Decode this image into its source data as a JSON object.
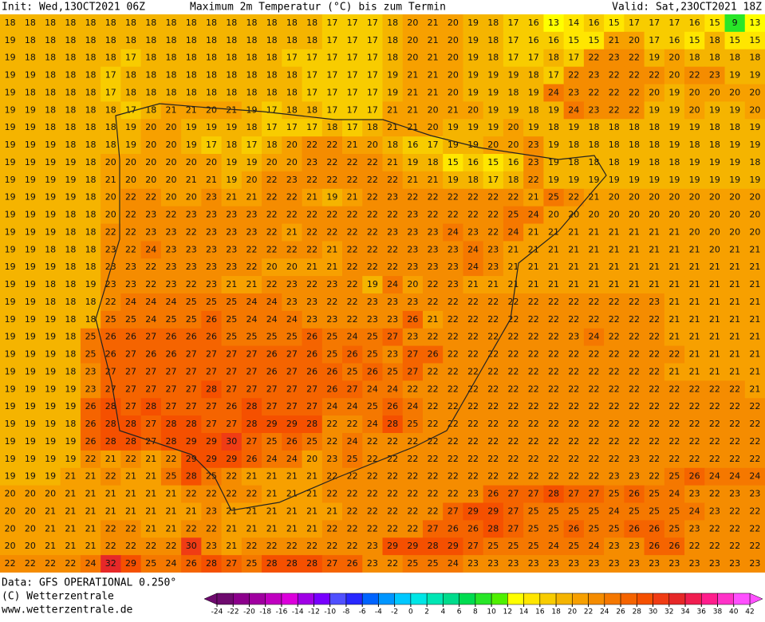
{
  "header": {
    "init": "Init: Wed,13OCT2021 06Z",
    "title": "Maximum 2m Temperatur (°C) bis zum Termin",
    "valid": "Valid: Sat,23OCT2021 18Z"
  },
  "map": {
    "type": "grid",
    "rows": [
      [
        18,
        18,
        18,
        18,
        18,
        18,
        18,
        18,
        18,
        18,
        18,
        18,
        18,
        18,
        18,
        18,
        17,
        17,
        17,
        18,
        20,
        21,
        20,
        19,
        18,
        17,
        16,
        13,
        14,
        16,
        15,
        17,
        17,
        17,
        16,
        15,
        9,
        13
      ],
      [
        19,
        18,
        18,
        18,
        18,
        18,
        18,
        18,
        18,
        18,
        18,
        18,
        18,
        18,
        18,
        18,
        17,
        17,
        17,
        18,
        20,
        21,
        20,
        19,
        18,
        17,
        16,
        16,
        15,
        15,
        21,
        20,
        17,
        16,
        15,
        18,
        15,
        15
      ],
      [
        19,
        18,
        18,
        18,
        18,
        18,
        17,
        18,
        18,
        18,
        18,
        18,
        18,
        18,
        17,
        17,
        17,
        17,
        17,
        18,
        20,
        21,
        20,
        19,
        18,
        17,
        17,
        18,
        17,
        22,
        23,
        22,
        19,
        20,
        18,
        18,
        18,
        18
      ],
      [
        19,
        19,
        18,
        18,
        18,
        17,
        18,
        18,
        18,
        18,
        18,
        18,
        18,
        18,
        18,
        17,
        17,
        17,
        17,
        19,
        21,
        21,
        20,
        19,
        19,
        19,
        18,
        17,
        22,
        23,
        22,
        22,
        22,
        20,
        22,
        23,
        19,
        19
      ],
      [
        19,
        18,
        18,
        18,
        18,
        17,
        18,
        18,
        18,
        18,
        18,
        18,
        18,
        18,
        18,
        17,
        17,
        17,
        17,
        19,
        21,
        21,
        20,
        19,
        19,
        18,
        19,
        24,
        23,
        22,
        22,
        22,
        20,
        19,
        20,
        20,
        20,
        20
      ],
      [
        19,
        19,
        18,
        18,
        18,
        18,
        17,
        18,
        21,
        21,
        20,
        21,
        19,
        17,
        18,
        18,
        17,
        17,
        17,
        21,
        21,
        20,
        21,
        20,
        19,
        19,
        18,
        19,
        24,
        23,
        22,
        22,
        19,
        19,
        20,
        19,
        19,
        20
      ],
      [
        19,
        19,
        18,
        18,
        18,
        18,
        19,
        20,
        20,
        19,
        19,
        19,
        18,
        17,
        17,
        17,
        18,
        17,
        18,
        21,
        21,
        20,
        19,
        19,
        19,
        20,
        19,
        18,
        19,
        18,
        18,
        18,
        18,
        19,
        19,
        18,
        18,
        19
      ],
      [
        19,
        19,
        19,
        18,
        18,
        18,
        19,
        20,
        20,
        19,
        17,
        18,
        17,
        18,
        20,
        22,
        22,
        21,
        20,
        18,
        16,
        17,
        19,
        19,
        20,
        20,
        23,
        19,
        18,
        18,
        18,
        18,
        18,
        19,
        18,
        18,
        19,
        19
      ],
      [
        19,
        19,
        19,
        19,
        18,
        20,
        20,
        20,
        20,
        20,
        20,
        19,
        19,
        20,
        20,
        23,
        22,
        22,
        22,
        21,
        19,
        18,
        15,
        16,
        15,
        16,
        23,
        19,
        18,
        18,
        18,
        19,
        18,
        18,
        19,
        19,
        19,
        18
      ],
      [
        19,
        19,
        19,
        19,
        18,
        21,
        20,
        20,
        20,
        21,
        21,
        19,
        20,
        22,
        23,
        22,
        22,
        22,
        22,
        22,
        21,
        21,
        19,
        18,
        17,
        18,
        22,
        19,
        19,
        19,
        19,
        19,
        19,
        19,
        19,
        19,
        19,
        19
      ],
      [
        19,
        19,
        19,
        19,
        18,
        20,
        22,
        22,
        20,
        20,
        23,
        21,
        21,
        22,
        22,
        21,
        19,
        21,
        22,
        23,
        22,
        22,
        22,
        22,
        22,
        22,
        21,
        25,
        22,
        21,
        20,
        20,
        20,
        20,
        20,
        20,
        20,
        20
      ],
      [
        19,
        19,
        19,
        18,
        18,
        20,
        22,
        23,
        22,
        23,
        23,
        23,
        23,
        22,
        22,
        22,
        22,
        22,
        22,
        22,
        23,
        22,
        22,
        22,
        22,
        25,
        24,
        20,
        20,
        20,
        20,
        20,
        20,
        20,
        20,
        20,
        20,
        20
      ],
      [
        19,
        19,
        19,
        18,
        18,
        22,
        22,
        23,
        23,
        22,
        23,
        23,
        23,
        22,
        21,
        22,
        22,
        22,
        22,
        23,
        23,
        23,
        24,
        23,
        22,
        24,
        21,
        21,
        21,
        21,
        21,
        21,
        21,
        21,
        20,
        20,
        20,
        20
      ],
      [
        19,
        19,
        18,
        18,
        18,
        23,
        22,
        24,
        23,
        23,
        23,
        23,
        22,
        22,
        22,
        22,
        21,
        22,
        22,
        22,
        23,
        23,
        23,
        24,
        23,
        21,
        21,
        21,
        21,
        21,
        21,
        21,
        21,
        21,
        21,
        20,
        21,
        21
      ],
      [
        19,
        19,
        19,
        18,
        18,
        23,
        23,
        22,
        23,
        23,
        23,
        23,
        22,
        20,
        20,
        21,
        21,
        22,
        22,
        22,
        23,
        23,
        23,
        24,
        23,
        21,
        21,
        21,
        21,
        21,
        21,
        21,
        21,
        21,
        21,
        21,
        21,
        21
      ],
      [
        19,
        19,
        18,
        18,
        19,
        23,
        23,
        22,
        23,
        22,
        23,
        21,
        21,
        22,
        23,
        22,
        23,
        22,
        19,
        24,
        20,
        22,
        23,
        21,
        21,
        21,
        21,
        21,
        21,
        21,
        21,
        21,
        21,
        21,
        21,
        21,
        21,
        21
      ],
      [
        19,
        19,
        18,
        18,
        18,
        22,
        24,
        24,
        24,
        25,
        25,
        25,
        24,
        24,
        23,
        23,
        22,
        22,
        23,
        23,
        23,
        22,
        22,
        22,
        22,
        22,
        22,
        22,
        22,
        22,
        22,
        22,
        23,
        21,
        21,
        21,
        21,
        21
      ],
      [
        19,
        19,
        19,
        18,
        18,
        25,
        25,
        24,
        25,
        25,
        26,
        25,
        24,
        24,
        24,
        23,
        23,
        22,
        23,
        23,
        26,
        21,
        22,
        22,
        22,
        22,
        22,
        22,
        22,
        22,
        22,
        22,
        22,
        21,
        21,
        21,
        21,
        21
      ],
      [
        19,
        19,
        19,
        18,
        25,
        26,
        26,
        27,
        26,
        26,
        26,
        25,
        25,
        25,
        25,
        26,
        25,
        24,
        25,
        27,
        23,
        22,
        22,
        22,
        22,
        22,
        22,
        22,
        23,
        24,
        22,
        22,
        22,
        21,
        21,
        21,
        21,
        21
      ],
      [
        19,
        19,
        19,
        18,
        25,
        26,
        27,
        26,
        26,
        27,
        27,
        27,
        27,
        26,
        27,
        26,
        25,
        26,
        25,
        23,
        27,
        26,
        22,
        22,
        22,
        22,
        22,
        22,
        22,
        22,
        22,
        22,
        22,
        22,
        21,
        21,
        21,
        21
      ],
      [
        19,
        19,
        19,
        18,
        23,
        27,
        27,
        27,
        27,
        27,
        27,
        27,
        27,
        26,
        27,
        26,
        26,
        25,
        26,
        25,
        27,
        22,
        22,
        22,
        22,
        22,
        22,
        22,
        22,
        22,
        22,
        22,
        22,
        21,
        21,
        21,
        21,
        21
      ],
      [
        19,
        19,
        19,
        19,
        23,
        27,
        27,
        27,
        27,
        27,
        28,
        27,
        27,
        27,
        27,
        27,
        26,
        27,
        24,
        24,
        22,
        22,
        22,
        22,
        22,
        22,
        22,
        22,
        22,
        22,
        22,
        22,
        22,
        22,
        22,
        22,
        22,
        21
      ],
      [
        19,
        19,
        19,
        19,
        26,
        28,
        27,
        28,
        27,
        27,
        27,
        26,
        28,
        27,
        27,
        27,
        24,
        24,
        25,
        26,
        24,
        22,
        22,
        22,
        22,
        22,
        22,
        22,
        22,
        22,
        22,
        22,
        22,
        22,
        22,
        22,
        22,
        22
      ],
      [
        19,
        19,
        19,
        18,
        26,
        28,
        28,
        27,
        28,
        28,
        27,
        27,
        28,
        29,
        29,
        28,
        22,
        22,
        24,
        28,
        25,
        22,
        22,
        22,
        22,
        22,
        22,
        22,
        22,
        22,
        22,
        22,
        22,
        22,
        22,
        22,
        22,
        22
      ],
      [
        19,
        19,
        19,
        19,
        26,
        28,
        28,
        27,
        28,
        29,
        29,
        30,
        27,
        25,
        26,
        25,
        22,
        24,
        22,
        22,
        22,
        22,
        22,
        22,
        22,
        22,
        22,
        22,
        22,
        22,
        22,
        22,
        22,
        22,
        22,
        22,
        22,
        22
      ],
      [
        19,
        19,
        19,
        19,
        22,
        21,
        22,
        21,
        22,
        29,
        29,
        29,
        26,
        24,
        24,
        20,
        23,
        25,
        22,
        22,
        22,
        22,
        22,
        22,
        22,
        22,
        22,
        22,
        22,
        22,
        22,
        23,
        22,
        22,
        22,
        22,
        22,
        22
      ],
      [
        19,
        19,
        19,
        21,
        21,
        22,
        21,
        21,
        25,
        28,
        25,
        22,
        21,
        21,
        21,
        21,
        22,
        22,
        22,
        22,
        22,
        22,
        22,
        22,
        22,
        22,
        22,
        22,
        22,
        22,
        23,
        23,
        22,
        25,
        26,
        24,
        24,
        24
      ],
      [
        20,
        20,
        20,
        21,
        21,
        21,
        21,
        21,
        21,
        22,
        22,
        22,
        22,
        21,
        21,
        21,
        22,
        22,
        22,
        22,
        22,
        22,
        22,
        23,
        26,
        27,
        27,
        28,
        27,
        27,
        25,
        26,
        25,
        24,
        23,
        22,
        23,
        23
      ],
      [
        20,
        20,
        21,
        21,
        21,
        21,
        21,
        21,
        21,
        21,
        23,
        21,
        21,
        21,
        21,
        21,
        21,
        22,
        22,
        22,
        22,
        22,
        27,
        29,
        29,
        27,
        25,
        25,
        25,
        25,
        24,
        25,
        25,
        25,
        24,
        23,
        22,
        22
      ],
      [
        20,
        20,
        21,
        21,
        21,
        22,
        22,
        21,
        21,
        22,
        22,
        21,
        21,
        21,
        21,
        21,
        22,
        22,
        22,
        22,
        22,
        27,
        26,
        26,
        28,
        27,
        25,
        25,
        26,
        25,
        25,
        26,
        26,
        25,
        23,
        22,
        22,
        22
      ],
      [
        20,
        20,
        21,
        21,
        21,
        22,
        22,
        22,
        22,
        30,
        23,
        21,
        22,
        22,
        22,
        22,
        22,
        22,
        23,
        29,
        29,
        28,
        29,
        27,
        25,
        25,
        25,
        24,
        25,
        24,
        23,
        23,
        26,
        26,
        22,
        22,
        22,
        22
      ],
      [
        22,
        22,
        22,
        22,
        24,
        32,
        29,
        25,
        24,
        26,
        28,
        27,
        25,
        28,
        28,
        28,
        27,
        26,
        23,
        22,
        25,
        25,
        24,
        23,
        23,
        23,
        23,
        23,
        23,
        23,
        23,
        23,
        23,
        23,
        23,
        23,
        23,
        23
      ]
    ]
  },
  "colorbar": {
    "ticks": [
      -24,
      -22,
      -20,
      -18,
      -16,
      -14,
      -12,
      -10,
      -8,
      -6,
      -4,
      -2,
      0,
      2,
      4,
      6,
      8,
      10,
      12,
      14,
      16,
      18,
      20,
      22,
      24,
      26,
      28,
      30,
      32,
      34,
      36,
      38,
      40,
      42
    ],
    "colors": [
      "#6e0a6e",
      "#8c008c",
      "#a000a0",
      "#c000c0",
      "#dc00dc",
      "#a000e6",
      "#7800ff",
      "#5050ff",
      "#2828ff",
      "#0064ff",
      "#0096ff",
      "#00c8ff",
      "#00e6e6",
      "#00e6b4",
      "#00dc8c",
      "#00dc50",
      "#28e628",
      "#50f000",
      "#ffff00",
      "#ffe600",
      "#f8cc00",
      "#f5b400",
      "#f7a000",
      "#f58c00",
      "#f57800",
      "#f56400",
      "#f55000",
      "#f03c14",
      "#e62828",
      "#f01e50",
      "#ff1e8c",
      "#ff32c8",
      "#ff50ff"
    ]
  },
  "footer": {
    "data_source": "Data: GFS OPERATIONAL 0.250°",
    "copyright": "(C) Wetterzentrale",
    "url": "www.wetterzentrale.de"
  }
}
